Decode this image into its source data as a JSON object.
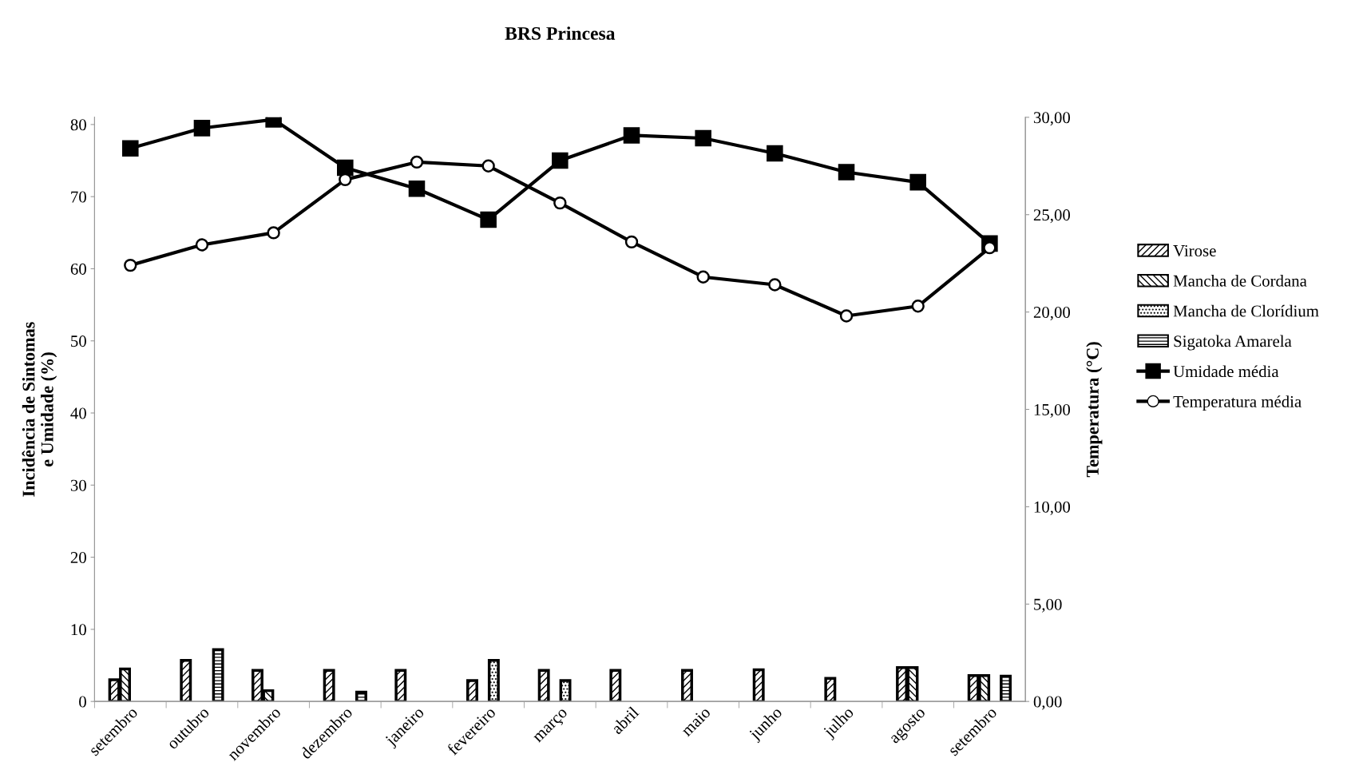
{
  "chart_data": {
    "type": "bar",
    "title": "BRS Princesa",
    "ylabel": "Incidência de Sintomas\ne Umidade (%)",
    "y2label": "Temperatura (°C)",
    "categories": [
      "setembro",
      "outubro",
      "novembro",
      "dezembro",
      "janeiro",
      "fevereiro",
      "março",
      "abril",
      "maio",
      "junho",
      "julho",
      "agosto",
      "setembro"
    ],
    "series": [
      {
        "name": "Virose",
        "color": "#000000",
        "values": [
          3.0,
          5.7,
          4.3,
          4.3,
          4.3,
          2.9,
          4.3,
          4.3,
          4.3,
          4.4,
          3.2,
          4.7,
          3.6
        ]
      },
      {
        "name": "Mancha de Cordana",
        "color": "#000000",
        "values": [
          4.5,
          null,
          1.5,
          null,
          null,
          null,
          null,
          null,
          null,
          null,
          null,
          4.7,
          3.6
        ]
      },
      {
        "name": "Mancha de Clorídium",
        "color": "#000000",
        "values": [
          null,
          null,
          null,
          null,
          null,
          5.7,
          2.9,
          null,
          null,
          null,
          null,
          null,
          null
        ]
      },
      {
        "name": "Sigatoka Amarela",
        "color": "#000000",
        "values": [
          null,
          7.2,
          null,
          1.3,
          null,
          null,
          null,
          null,
          null,
          null,
          null,
          null,
          3.5
        ]
      },
      {
        "name": "Umidade média",
        "type": "line",
        "color": "#000000",
        "marker": "square",
        "values": [
          76.7,
          79.5,
          80.7,
          74.0,
          71.1,
          66.8,
          75.0,
          78.5,
          78.1,
          76.0,
          73.4,
          72.0,
          63.5
        ]
      },
      {
        "name": "Temperatura média",
        "type": "line",
        "axis": "y2",
        "color": "#000000",
        "marker": "circle",
        "values": [
          22.4,
          23.45,
          24.07,
          26.8,
          27.7,
          27.5,
          25.6,
          23.6,
          21.8,
          21.4,
          19.8,
          20.3,
          23.3
        ]
      }
    ],
    "ylim": [
      0,
      81
    ],
    "yticks": [
      0,
      10,
      20,
      30,
      40,
      50,
      60,
      70,
      80
    ],
    "y2lim": [
      0,
      30
    ],
    "y2ticks": [
      {
        "value": 0,
        "label": "0,00"
      },
      {
        "value": 5,
        "label": "5,00"
      },
      {
        "value": 10,
        "label": "10,00"
      },
      {
        "value": 15,
        "label": "15,00"
      },
      {
        "value": 20,
        "label": "20,00"
      },
      {
        "value": 25,
        "label": "25,00"
      },
      {
        "value": 30,
        "label": "30,00"
      }
    ],
    "grid": false,
    "legend": "right"
  }
}
